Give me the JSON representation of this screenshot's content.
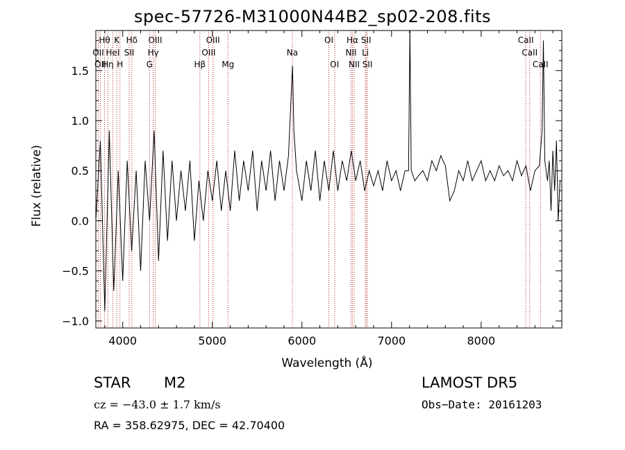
{
  "chart_data": {
    "type": "line",
    "title": "spec-57726-M31000N44B2_sp02-208.fits",
    "xlabel": "Wavelength (Å)",
    "ylabel": "Flux (relative)",
    "xlim": [
      3700,
      8900
    ],
    "ylim": [
      -1.07,
      1.9
    ],
    "x_ticks": [
      4000,
      5000,
      6000,
      7000,
      8000
    ],
    "y_ticks": [
      -1.0,
      -0.5,
      0.0,
      0.5,
      1.0,
      1.5
    ],
    "y_tick_labels": [
      "−1.0",
      "−0.5",
      "0.0",
      "0.5",
      "1.0",
      "1.5"
    ],
    "grid": false,
    "series": [
      {
        "x": [
          3700,
          3750,
          3800,
          3850,
          3900,
          3950,
          4000,
          4050,
          4100,
          4150,
          4200,
          4250,
          4300,
          4350,
          4400,
          4450,
          4500,
          4550,
          4600,
          4650,
          4700,
          4750,
          4800,
          4850,
          4900,
          4950,
          5000,
          5050,
          5100,
          5150,
          5200,
          5250,
          5300,
          5350,
          5400,
          5450,
          5500,
          5550,
          5600,
          5650,
          5700,
          5750,
          5800,
          5850,
          5880,
          5895,
          5910,
          5940,
          6000,
          6050,
          6100,
          6150,
          6200,
          6250,
          6300,
          6350,
          6400,
          6450,
          6500,
          6550,
          6600,
          6650,
          6700,
          6750,
          6800,
          6850,
          6900,
          6950,
          7000,
          7050,
          7100,
          7150,
          7190,
          7205,
          7220,
          7260,
          7300,
          7350,
          7400,
          7450,
          7500,
          7550,
          7600,
          7650,
          7700,
          7750,
          7800,
          7850,
          7900,
          7950,
          8000,
          8050,
          8100,
          8150,
          8200,
          8250,
          8300,
          8350,
          8400,
          8450,
          8500,
          8550,
          8600,
          8650,
          8680,
          8695,
          8710,
          8740,
          8760,
          8780,
          8800,
          8820,
          8840,
          8860,
          8880
        ],
        "y": [
          0.0,
          0.8,
          -0.9,
          0.9,
          -0.7,
          0.5,
          -0.6,
          0.6,
          -0.3,
          0.5,
          -0.5,
          0.6,
          0.0,
          0.9,
          -0.4,
          0.7,
          -0.2,
          0.6,
          0.0,
          0.5,
          0.1,
          0.6,
          -0.2,
          0.4,
          0.0,
          0.5,
          0.2,
          0.6,
          0.1,
          0.5,
          0.1,
          0.7,
          0.2,
          0.6,
          0.3,
          0.7,
          0.1,
          0.6,
          0.3,
          0.7,
          0.2,
          0.6,
          0.3,
          0.65,
          1.25,
          1.55,
          0.9,
          0.5,
          0.2,
          0.6,
          0.3,
          0.7,
          0.2,
          0.6,
          0.3,
          0.7,
          0.3,
          0.6,
          0.4,
          0.7,
          0.4,
          0.6,
          0.3,
          0.5,
          0.35,
          0.5,
          0.3,
          0.6,
          0.4,
          0.5,
          0.3,
          0.5,
          0.5,
          1.9,
          0.5,
          0.4,
          0.45,
          0.5,
          0.4,
          0.6,
          0.5,
          0.65,
          0.55,
          0.2,
          0.3,
          0.5,
          0.4,
          0.6,
          0.4,
          0.5,
          0.6,
          0.4,
          0.5,
          0.4,
          0.55,
          0.45,
          0.5,
          0.4,
          0.6,
          0.45,
          0.55,
          0.3,
          0.5,
          0.55,
          0.9,
          1.8,
          0.6,
          0.4,
          0.6,
          0.1,
          0.7,
          0.3,
          0.8,
          0.0,
          0.4
        ]
      }
    ],
    "lines": [
      {
        "x": 3727,
        "label": "OII",
        "row": 2
      },
      {
        "x": 3750,
        "label": "OII",
        "row": 3
      },
      {
        "x": 3797,
        "label": "Hθ",
        "row": 1
      },
      {
        "x": 3835,
        "label": "Hη",
        "row": 3
      },
      {
        "x": 3889,
        "label": "HeI",
        "row": 2
      },
      {
        "x": 3934,
        "label": "K",
        "row": 1
      },
      {
        "x": 3969,
        "label": "H",
        "row": 3
      },
      {
        "x": 4072,
        "label": "SII",
        "row": 2
      },
      {
        "x": 4102,
        "label": "Hδ",
        "row": 1
      },
      {
        "x": 4300,
        "label": "G",
        "row": 3
      },
      {
        "x": 4341,
        "label": "Hγ",
        "row": 2
      },
      {
        "x": 4363,
        "label": "OIII",
        "row": 1
      },
      {
        "x": 4861,
        "label": "Hβ",
        "row": 3
      },
      {
        "x": 4959,
        "label": "OIII",
        "row": 2
      },
      {
        "x": 5007,
        "label": "OIII",
        "row": 1
      },
      {
        "x": 5175,
        "label": "Mg",
        "row": 3
      },
      {
        "x": 5893,
        "label": "Na",
        "row": 2
      },
      {
        "x": 6300,
        "label": "OI",
        "row": 1
      },
      {
        "x": 6364,
        "label": "OI",
        "row": 3
      },
      {
        "x": 6548,
        "label": "NII",
        "row": 2
      },
      {
        "x": 6563,
        "label": "Hα",
        "row": 1
      },
      {
        "x": 6583,
        "label": "NII",
        "row": 3
      },
      {
        "x": 6708,
        "label": "Li",
        "row": 2
      },
      {
        "x": 6716,
        "label": "SII",
        "row": 1
      },
      {
        "x": 6731,
        "label": "SII",
        "row": 3
      },
      {
        "x": 8498,
        "label": "CaII",
        "row": 1
      },
      {
        "x": 8542,
        "label": "CaII",
        "row": 2
      },
      {
        "x": 8662,
        "label": "CaII",
        "row": 3
      }
    ]
  },
  "info": {
    "object_class": "STAR",
    "subclass": "M2",
    "survey": "LAMOST  DR5",
    "cz": "cz = −43.0 ± 1.7 km/s",
    "obs_date": "Obs−Date: 20161203",
    "coords": "RA = 358.62975, DEC =  42.70400"
  },
  "colors": {
    "axis": "#000000",
    "spectrum": "#000000",
    "line_markers": "#b22222"
  }
}
